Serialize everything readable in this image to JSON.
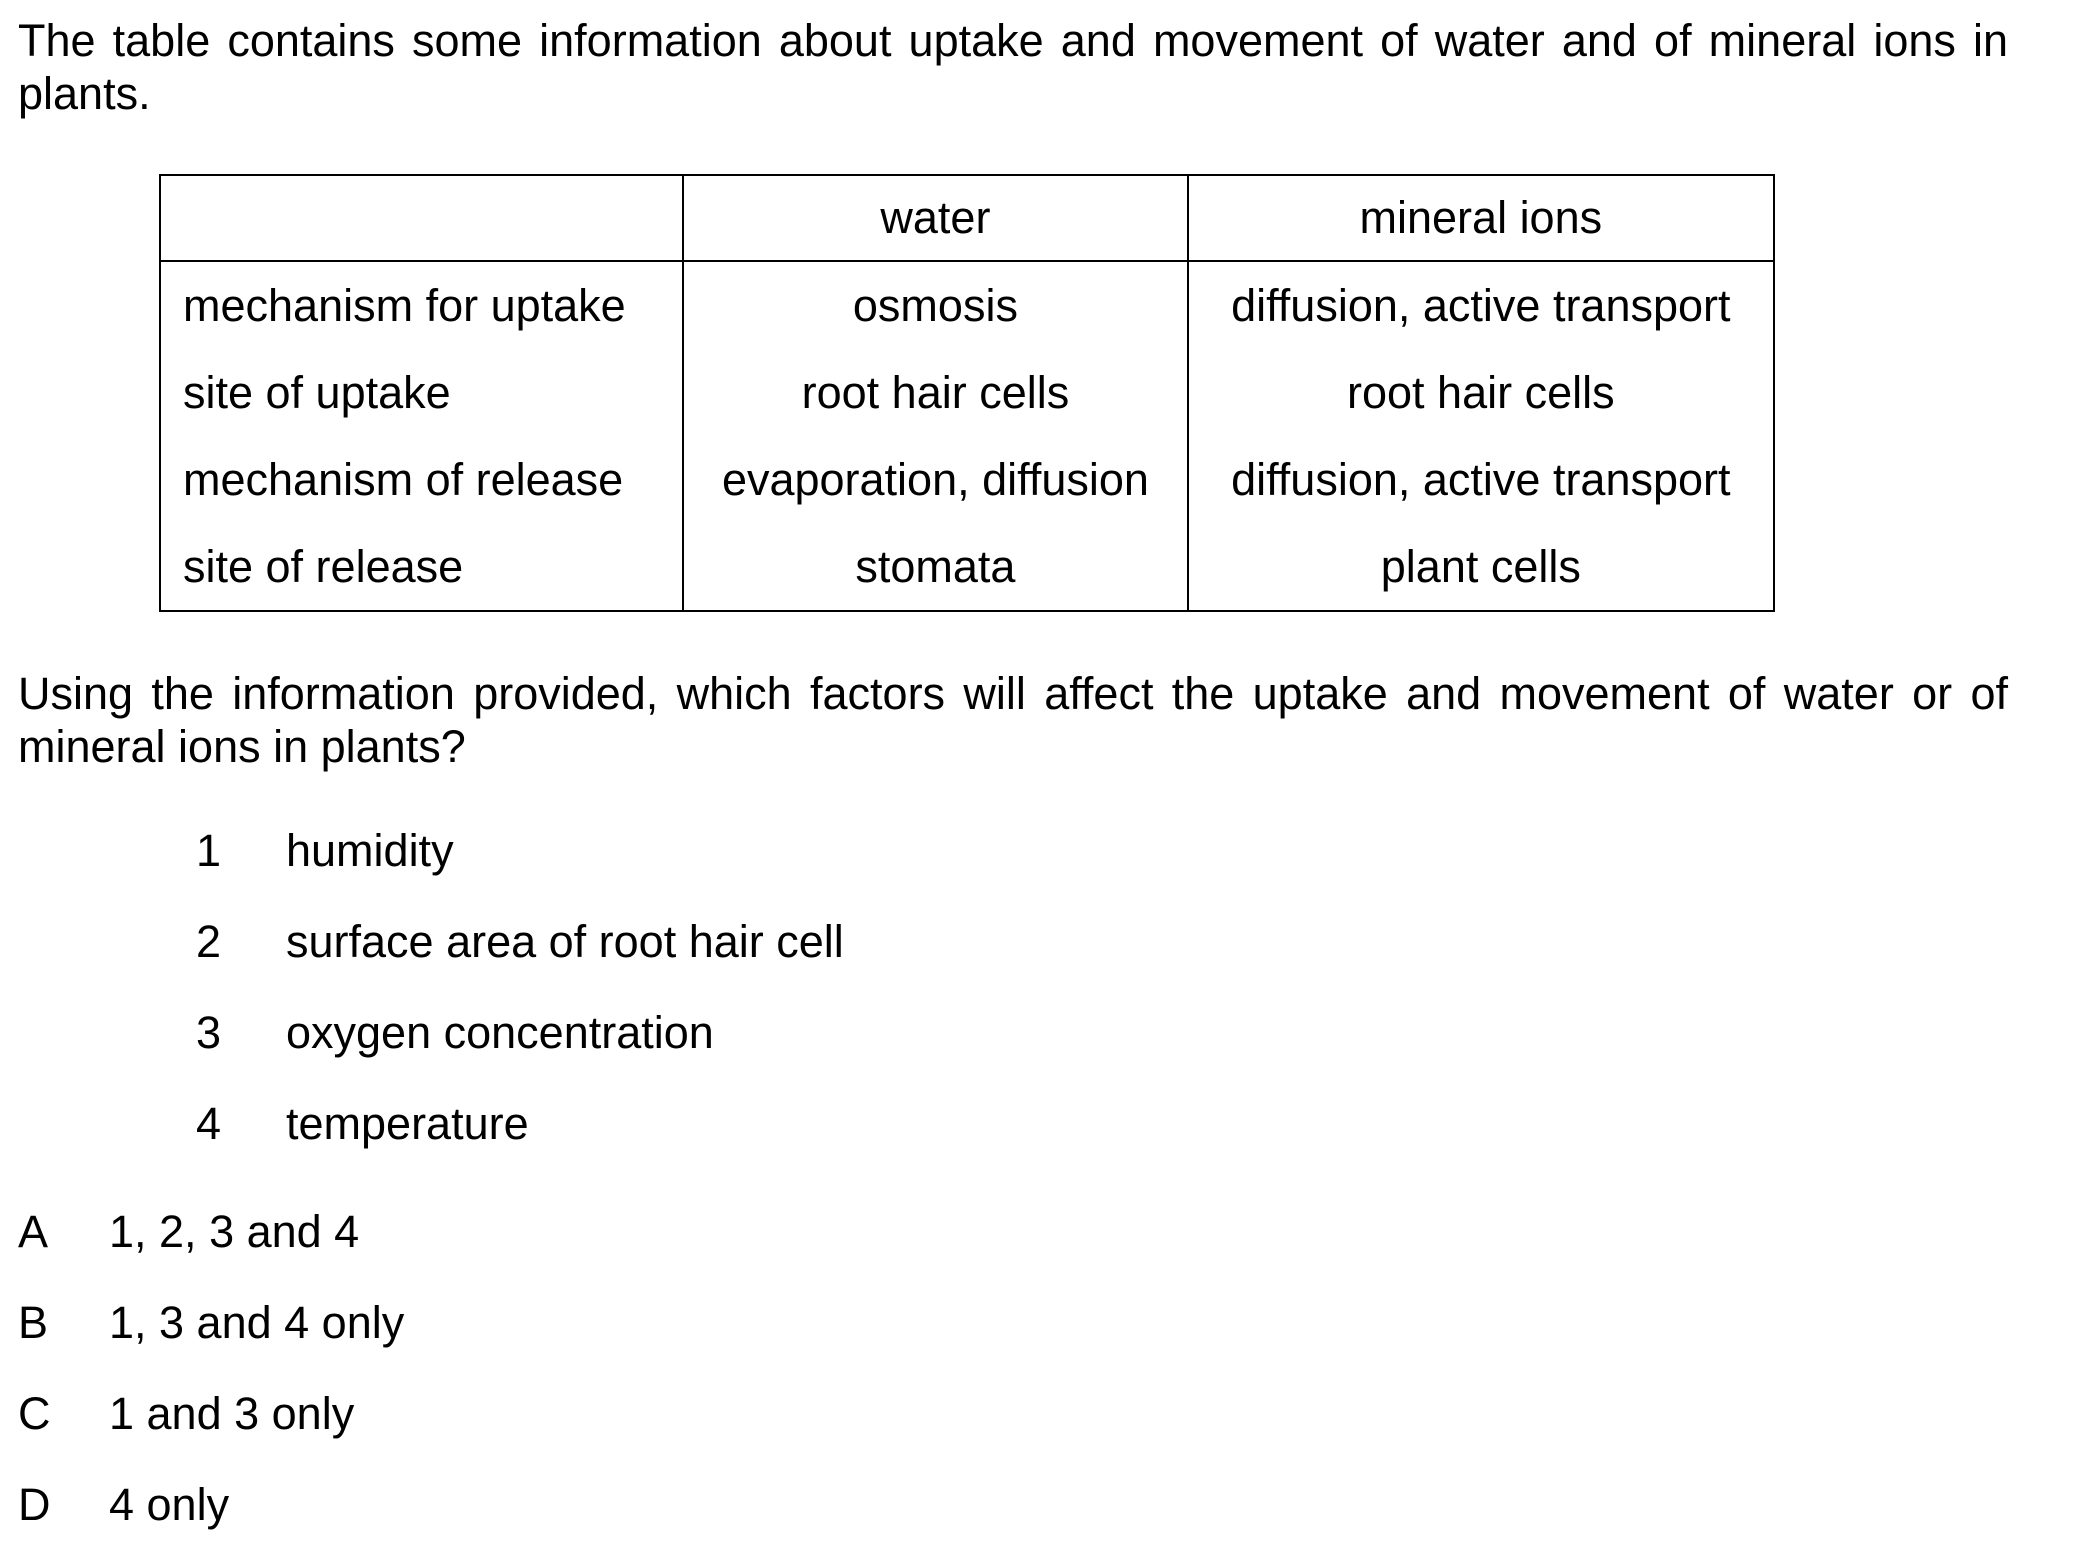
{
  "intro": "The table contains some information about uptake and movement of water and of mineral ions in plants.",
  "table": {
    "headers": [
      "",
      "water",
      "mineral ions"
    ],
    "rows": [
      [
        "mechanism for uptake",
        "osmosis",
        "diffusion, active transport"
      ],
      [
        "site of uptake",
        "root hair cells",
        "root hair cells"
      ],
      [
        "mechanism of release",
        "evaporation, diffusion",
        "diffusion, active transport"
      ],
      [
        "site of release",
        "stomata",
        "plant cells"
      ]
    ]
  },
  "question": "Using the information provided, which factors will affect the uptake and movement of water or of mineral ions in plants?",
  "factors": [
    {
      "num": "1",
      "text": "humidity"
    },
    {
      "num": "2",
      "text": "surface area of root hair cell"
    },
    {
      "num": "3",
      "text": "oxygen concentration"
    },
    {
      "num": "4",
      "text": "temperature"
    }
  ],
  "options": [
    {
      "letter": "A",
      "text": "1, 2, 3 and 4"
    },
    {
      "letter": "B",
      "text": "1, 3 and 4 only"
    },
    {
      "letter": "C",
      "text": "1 and 3 only"
    },
    {
      "letter": "D",
      "text": "4 only"
    }
  ]
}
